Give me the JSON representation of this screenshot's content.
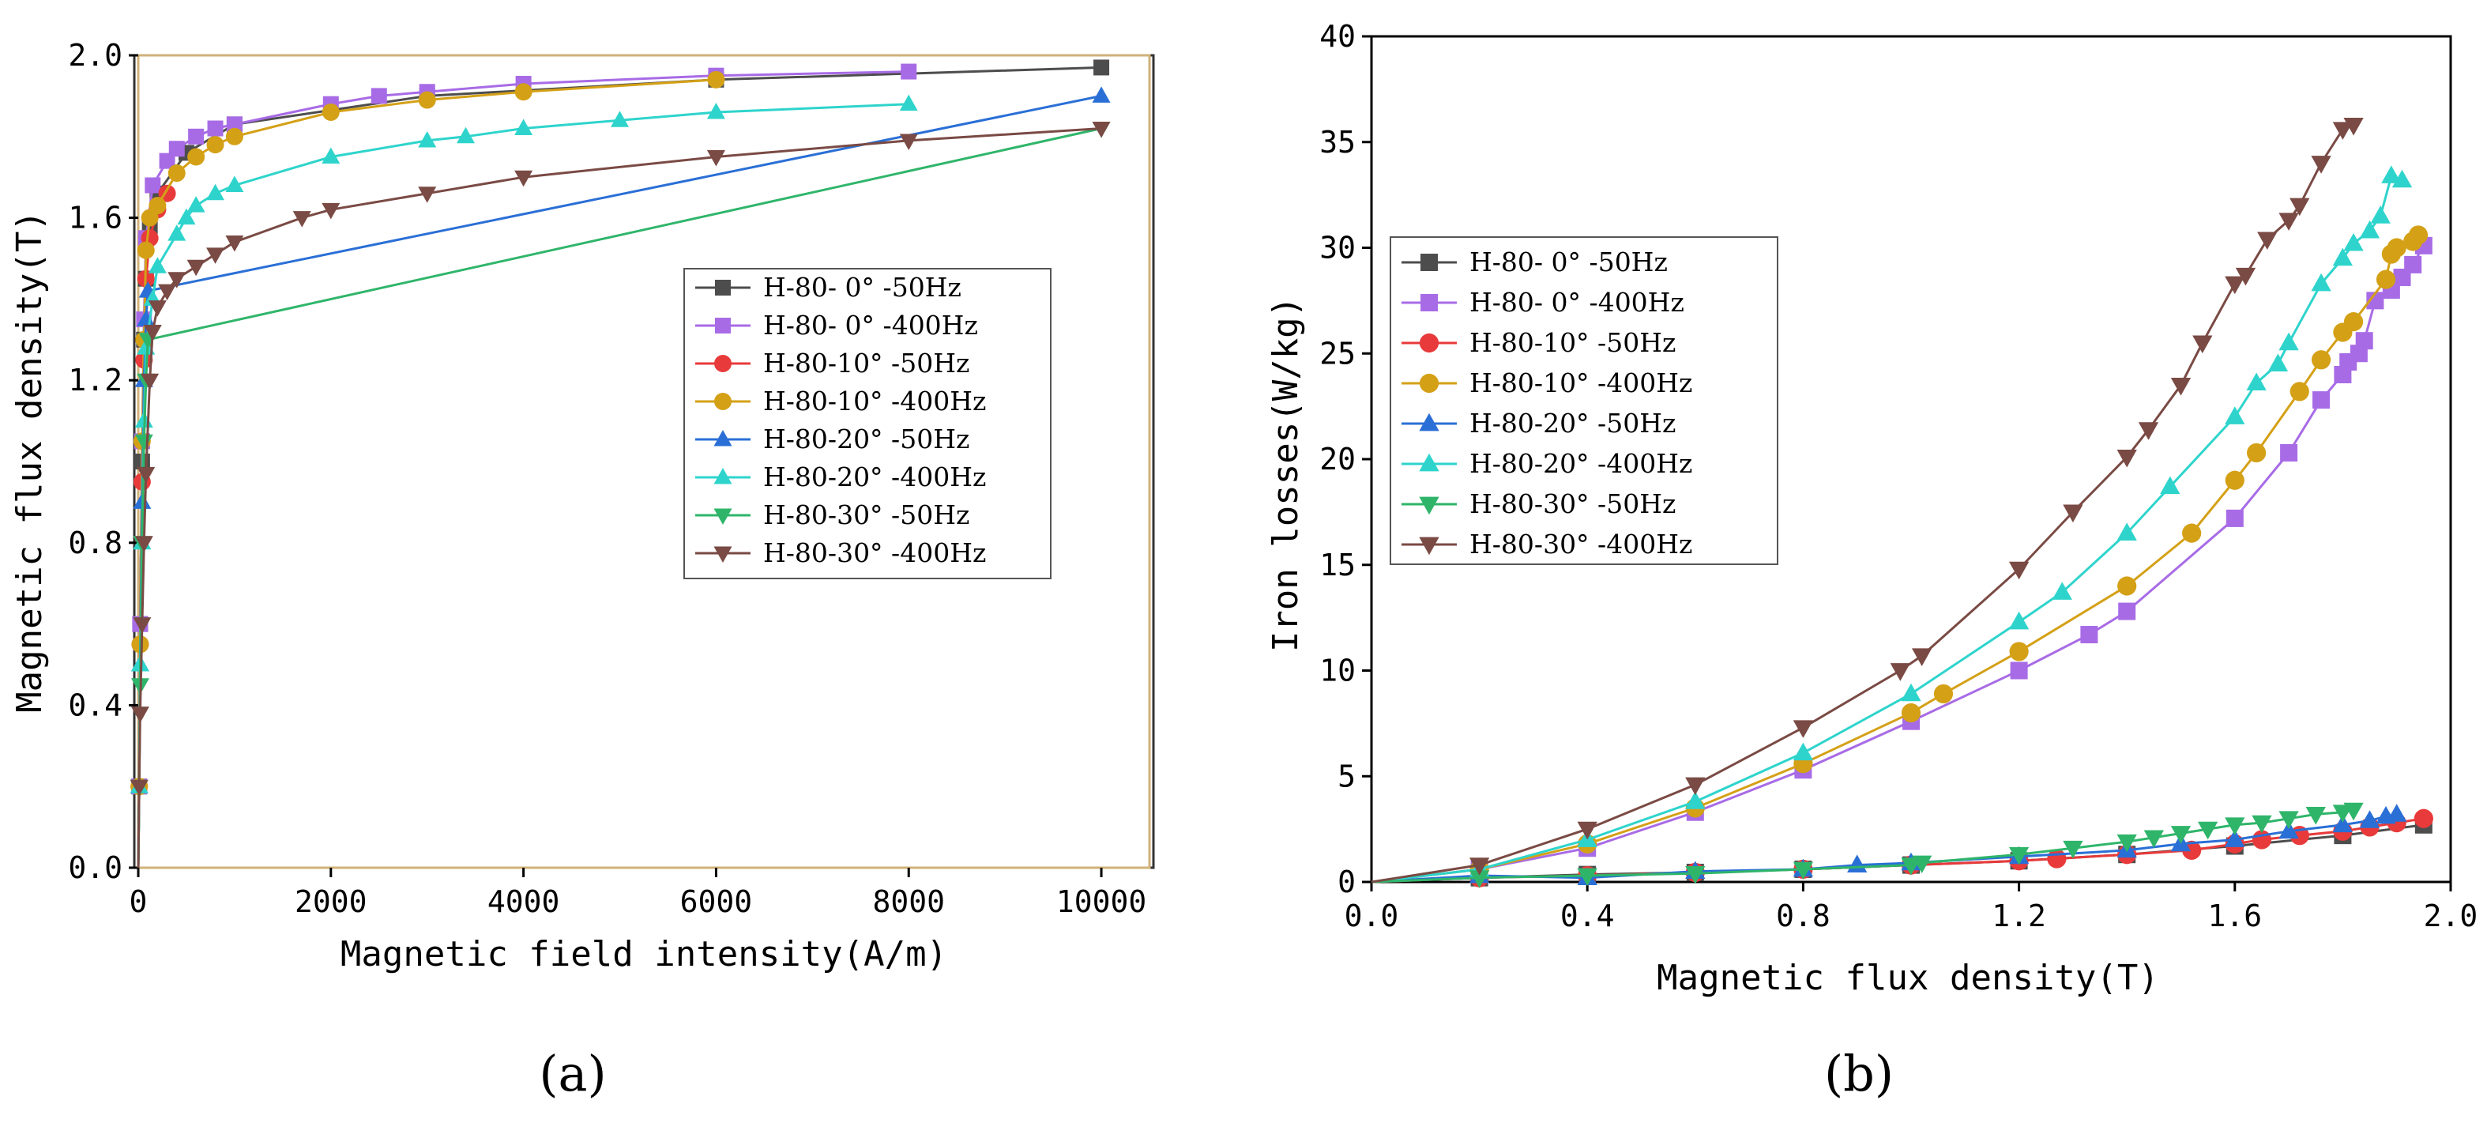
{
  "chart_data": [
    {
      "id": "a",
      "panel_label": "(a)",
      "type": "line",
      "title": "",
      "xlabel": "Magnetic field intensity(A/m)",
      "ylabel": "Magnetic flux density(T)",
      "xlim": [
        0,
        10500
      ],
      "ylim": [
        0,
        2.0
      ],
      "xticks": [
        0,
        2000,
        4000,
        6000,
        8000,
        10000
      ],
      "xtick_labels": [
        "0",
        "2000",
        "4000",
        "6000",
        "8000",
        "10000"
      ],
      "yticks": [
        0,
        0.4,
        0.8,
        1.2,
        1.6,
        2.0
      ],
      "ytick_labels": [
        "0.0",
        "0.4",
        "0.8",
        "1.2",
        "1.6",
        "2.0"
      ],
      "legend_position": "center-right",
      "series": [
        {
          "name": "H-80- 0° -50Hz",
          "color": "#4d4d4d",
          "marker": "square",
          "x": [
            0,
            10,
            20,
            40,
            60,
            80,
            120,
            200,
            500,
            1000,
            3000,
            6000,
            10000
          ],
          "y": [
            0,
            0.2,
            0.6,
            1.0,
            1.3,
            1.45,
            1.58,
            1.66,
            1.76,
            1.83,
            1.9,
            1.94,
            1.97
          ]
        },
        {
          "name": "H-80- 0° -400Hz",
          "color": "#a86be6",
          "marker": "square",
          "x": [
            0,
            10,
            20,
            40,
            60,
            80,
            150,
            300,
            400,
            600,
            800,
            1000,
            2000,
            2500,
            3000,
            4000,
            6000,
            8000
          ],
          "y": [
            0,
            0.2,
            0.6,
            1.05,
            1.35,
            1.55,
            1.68,
            1.74,
            1.77,
            1.8,
            1.82,
            1.83,
            1.88,
            1.9,
            1.91,
            1.93,
            1.95,
            1.96
          ]
        },
        {
          "name": "H-80-10° -50Hz",
          "color": "#e83a3a",
          "marker": "circle",
          "x": [
            0,
            10,
            20,
            40,
            60,
            80,
            120,
            200,
            300
          ],
          "y": [
            0,
            0.2,
            0.55,
            0.95,
            1.25,
            1.45,
            1.55,
            1.62,
            1.66
          ]
        },
        {
          "name": "H-80-10° -400Hz",
          "color": "#d4a016",
          "marker": "circle",
          "x": [
            0,
            10,
            20,
            40,
            60,
            80,
            120,
            200,
            400,
            600,
            800,
            1000,
            2000,
            3000,
            4000,
            6000
          ],
          "y": [
            0,
            0.2,
            0.55,
            1.05,
            1.3,
            1.52,
            1.6,
            1.63,
            1.71,
            1.75,
            1.78,
            1.8,
            1.86,
            1.89,
            1.91,
            1.94
          ]
        },
        {
          "name": "H-80-20° -50Hz",
          "color": "#2a6fd6",
          "marker": "triangle-up",
          "x": [
            0,
            10,
            20,
            40,
            60,
            80,
            100,
            10000
          ],
          "y": [
            0,
            0.2,
            0.5,
            0.9,
            1.2,
            1.35,
            1.42,
            1.9
          ]
        },
        {
          "name": "H-80-20° -400Hz",
          "color": "#2ed4cc",
          "marker": "triangle-up",
          "x": [
            0,
            10,
            20,
            40,
            60,
            80,
            150,
            200,
            400,
            500,
            600,
            800,
            1000,
            2000,
            3000,
            3400,
            4000,
            5000,
            6000,
            8000
          ],
          "y": [
            0,
            0.2,
            0.5,
            0.8,
            1.1,
            1.28,
            1.4,
            1.48,
            1.56,
            1.6,
            1.63,
            1.66,
            1.68,
            1.75,
            1.79,
            1.8,
            1.82,
            1.84,
            1.86,
            1.88
          ]
        },
        {
          "name": "H-80-30° -50Hz",
          "color": "#2fb56a",
          "marker": "triangle-down",
          "x": [
            0,
            10,
            20,
            40,
            60,
            80,
            100,
            10000
          ],
          "y": [
            0,
            0.2,
            0.45,
            0.8,
            1.05,
            1.2,
            1.3,
            1.82
          ]
        },
        {
          "name": "H-80-30° -400Hz",
          "color": "#7a4a44",
          "marker": "triangle-down",
          "x": [
            0,
            10,
            20,
            40,
            60,
            80,
            120,
            150,
            200,
            300,
            400,
            600,
            800,
            1000,
            1700,
            2000,
            3000,
            4000,
            6000,
            8000,
            10000
          ],
          "y": [
            0,
            0.2,
            0.38,
            0.6,
            0.8,
            0.97,
            1.2,
            1.32,
            1.38,
            1.42,
            1.45,
            1.48,
            1.51,
            1.54,
            1.6,
            1.62,
            1.66,
            1.7,
            1.75,
            1.79,
            1.82
          ]
        }
      ]
    },
    {
      "id": "b",
      "panel_label": "(b)",
      "type": "line",
      "title": "",
      "xlabel": "Magnetic flux density(T)",
      "ylabel": "Iron losses(W/kg)",
      "xlim": [
        0,
        2.0
      ],
      "ylim": [
        0,
        40
      ],
      "xticks": [
        0,
        0.4,
        0.8,
        1.2,
        1.6,
        2.0
      ],
      "xtick_labels": [
        "0.0",
        "0.4",
        "0.8",
        "1.2",
        "1.6",
        "2.0"
      ],
      "yticks": [
        0,
        5,
        10,
        15,
        20,
        25,
        30,
        35,
        40
      ],
      "ytick_labels": [
        "0",
        "5",
        "10",
        "15",
        "20",
        "25",
        "30",
        "35",
        "40"
      ],
      "legend_position": "top-left",
      "series": [
        {
          "name": "H-80- 0° -50Hz",
          "color": "#4d4d4d",
          "marker": "square",
          "x": [
            0,
            0.2,
            0.4,
            0.6,
            0.8,
            1.0,
            1.2,
            1.4,
            1.6,
            1.8,
            1.95
          ],
          "y": [
            0,
            0.2,
            0.35,
            0.45,
            0.6,
            0.8,
            1.0,
            1.3,
            1.7,
            2.2,
            2.7
          ]
        },
        {
          "name": "H-80- 0° -400Hz",
          "color": "#a86be6",
          "marker": "square",
          "x": [
            0,
            0.2,
            0.4,
            0.6,
            0.8,
            1.0,
            1.2,
            1.33,
            1.4,
            1.6,
            1.7,
            1.76,
            1.8,
            1.81,
            1.83,
            1.84,
            1.86,
            1.89,
            1.91,
            1.93,
            1.95
          ],
          "y": [
            0,
            0.6,
            1.6,
            3.3,
            5.3,
            7.6,
            10.0,
            11.7,
            12.8,
            17.2,
            20.3,
            22.8,
            24.0,
            24.6,
            25.0,
            25.6,
            27.5,
            28.0,
            28.6,
            29.2,
            30.1
          ]
        },
        {
          "name": "H-80-10° -50Hz",
          "color": "#e83a3a",
          "marker": "circle",
          "x": [
            0,
            0.2,
            0.4,
            0.6,
            0.8,
            1.0,
            1.2,
            1.27,
            1.4,
            1.52,
            1.6,
            1.65,
            1.72,
            1.8,
            1.85,
            1.9,
            1.95
          ],
          "y": [
            0,
            0.2,
            0.3,
            0.45,
            0.6,
            0.8,
            1.0,
            1.1,
            1.3,
            1.5,
            1.8,
            2.0,
            2.2,
            2.4,
            2.6,
            2.8,
            3.0
          ]
        },
        {
          "name": "H-80-10° -400Hz",
          "color": "#d4a016",
          "marker": "circle",
          "x": [
            0,
            0.2,
            0.4,
            0.6,
            0.8,
            1.0,
            1.06,
            1.2,
            1.4,
            1.52,
            1.6,
            1.64,
            1.72,
            1.76,
            1.8,
            1.82,
            1.88,
            1.89,
            1.9,
            1.93,
            1.94
          ],
          "y": [
            0,
            0.6,
            1.8,
            3.5,
            5.6,
            8.0,
            8.9,
            10.9,
            14.0,
            16.5,
            19.0,
            20.3,
            23.2,
            24.7,
            26.0,
            26.5,
            28.5,
            29.7,
            30.0,
            30.3,
            30.6
          ]
        },
        {
          "name": "H-80-20° -50Hz",
          "color": "#2a6fd6",
          "marker": "triangle-up",
          "x": [
            0,
            0.2,
            0.4,
            0.6,
            0.8,
            0.9,
            1.0,
            1.2,
            1.4,
            1.5,
            1.6,
            1.7,
            1.8,
            1.85,
            1.88,
            1.9
          ],
          "y": [
            0,
            0.3,
            0.2,
            0.5,
            0.6,
            0.8,
            0.9,
            1.2,
            1.5,
            1.8,
            2.0,
            2.4,
            2.7,
            2.9,
            3.1,
            3.2
          ]
        },
        {
          "name": "H-80-20° -400Hz",
          "color": "#2ed4cc",
          "marker": "triangle-up",
          "x": [
            0,
            0.2,
            0.4,
            0.6,
            0.8,
            1.0,
            1.2,
            1.28,
            1.4,
            1.48,
            1.6,
            1.64,
            1.68,
            1.7,
            1.76,
            1.8,
            1.82,
            1.85,
            1.87,
            1.89,
            1.91
          ],
          "y": [
            0,
            0.6,
            2.0,
            3.8,
            6.1,
            8.9,
            12.3,
            13.7,
            16.5,
            18.7,
            22.0,
            23.6,
            24.5,
            25.5,
            28.3,
            29.5,
            30.2,
            30.8,
            31.5,
            33.4,
            33.2
          ]
        },
        {
          "name": "H-80-30° -50Hz",
          "color": "#2fb56a",
          "marker": "triangle-down",
          "x": [
            0,
            0.2,
            0.4,
            0.6,
            0.8,
            1.0,
            1.02,
            1.2,
            1.3,
            1.4,
            1.45,
            1.5,
            1.55,
            1.6,
            1.65,
            1.7,
            1.75,
            1.8,
            1.82
          ],
          "y": [
            0,
            0.2,
            0.3,
            0.4,
            0.6,
            0.8,
            0.9,
            1.3,
            1.6,
            1.9,
            2.1,
            2.3,
            2.5,
            2.7,
            2.8,
            3.0,
            3.2,
            3.3,
            3.4
          ]
        },
        {
          "name": "H-80-30° -400Hz",
          "color": "#7a4a44",
          "marker": "triangle-down",
          "x": [
            0,
            0.2,
            0.4,
            0.6,
            0.8,
            0.98,
            1.02,
            1.2,
            1.3,
            1.4,
            1.44,
            1.5,
            1.54,
            1.6,
            1.62,
            1.66,
            1.7,
            1.72,
            1.76,
            1.8,
            1.82
          ],
          "y": [
            0,
            0.8,
            2.5,
            4.6,
            7.3,
            10.0,
            10.7,
            14.8,
            17.5,
            20.1,
            21.4,
            23.5,
            25.5,
            28.3,
            28.7,
            30.4,
            31.3,
            32.0,
            34.0,
            35.6,
            35.8
          ]
        }
      ]
    }
  ]
}
